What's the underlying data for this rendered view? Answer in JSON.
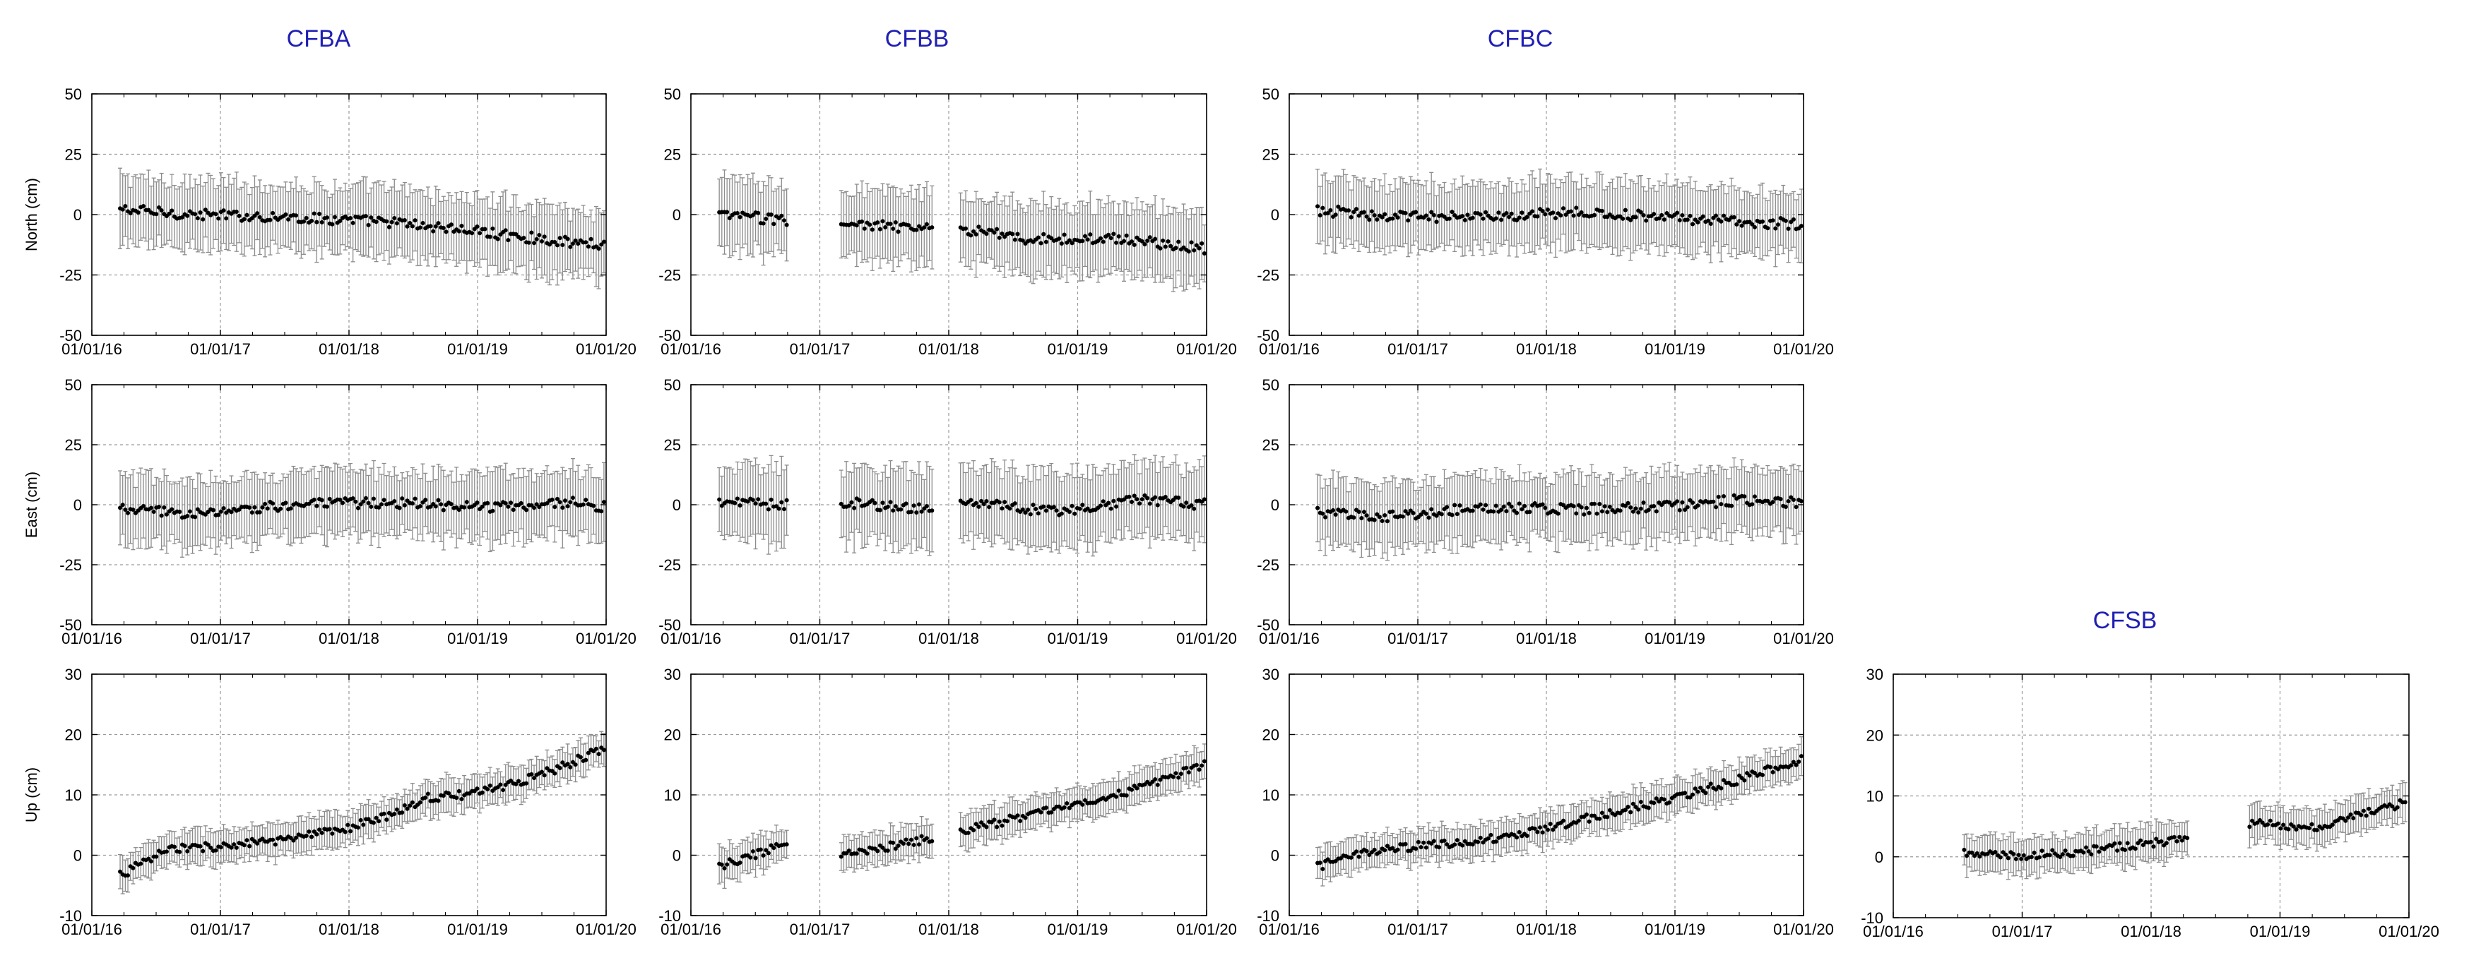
{
  "figure": {
    "series_color": "#000000",
    "errorbar_color": "#8c8c8c",
    "grid_color": "#9a9a9a",
    "title_color": "#1f1fb4"
  },
  "ylabels": {
    "north": "North (cm)",
    "east": "East (cm)",
    "up": "Up (cm)"
  },
  "titles": {
    "CFBA": "CFBA",
    "CFBB": "CFBB",
    "CFBC": "CFBC",
    "CFSB": "CFSB"
  },
  "chart_data": [
    {
      "id": "CFBA-north",
      "type": "scatter",
      "station": "CFBA",
      "component": "north",
      "ylabel": "North (cm)",
      "x_range": [
        "2016-01-01",
        "2020-01-01"
      ],
      "xticks": [
        "01/01/16",
        "01/01/17",
        "01/01/18",
        "01/01/19",
        "01/01/20"
      ],
      "ylim": [
        -50,
        50
      ],
      "yticks": [
        -50,
        -25,
        0,
        25,
        50
      ],
      "grid": true,
      "trend": [
        [
          2016.25,
          2
        ],
        [
          2016.8,
          0
        ],
        [
          2017.5,
          -1
        ],
        [
          2018.3,
          -3
        ],
        [
          2019.0,
          -7
        ],
        [
          2019.8,
          -12
        ],
        [
          2020.0,
          -12
        ]
      ],
      "errorbar_half_width_cm": 14,
      "gaps": []
    },
    {
      "id": "CFBA-east",
      "type": "scatter",
      "station": "CFBA",
      "component": "east",
      "ylabel": "East (cm)",
      "x_range": [
        "2016-01-01",
        "2020-01-01"
      ],
      "xticks": [
        "01/01/16",
        "01/01/17",
        "01/01/18",
        "01/01/19",
        "01/01/20"
      ],
      "ylim": [
        -50,
        50
      ],
      "yticks": [
        -50,
        -25,
        0,
        25,
        50
      ],
      "grid": true,
      "trend": [
        [
          2016.25,
          -2
        ],
        [
          2016.9,
          -4
        ],
        [
          2017.5,
          0
        ],
        [
          2018.3,
          1
        ],
        [
          2019.0,
          -1
        ],
        [
          2019.8,
          1
        ],
        [
          2020.0,
          -1
        ]
      ],
      "errorbar_half_width_cm": 14,
      "gaps": []
    },
    {
      "id": "CFBA-up",
      "type": "scatter",
      "station": "CFBA",
      "component": "up",
      "ylabel": "Up (cm)",
      "x_range": [
        "2016-01-01",
        "2020-01-01"
      ],
      "xticks": [
        "01/01/16",
        "01/01/17",
        "01/01/18",
        "01/01/19",
        "01/01/20"
      ],
      "ylim": [
        -10,
        30
      ],
      "yticks": [
        -10,
        0,
        10,
        20,
        30
      ],
      "grid": true,
      "trend": [
        [
          2016.25,
          -3
        ],
        [
          2016.6,
          1
        ],
        [
          2017.0,
          1.5
        ],
        [
          2017.5,
          2.5
        ],
        [
          2018.0,
          4.5
        ],
        [
          2018.3,
          6.5
        ],
        [
          2018.6,
          9.5
        ],
        [
          2018.9,
          10
        ],
        [
          2019.3,
          12
        ],
        [
          2019.7,
          15
        ],
        [
          2020.0,
          18
        ]
      ],
      "errorbar_half_width_cm": 2.8,
      "gaps": []
    },
    {
      "id": "CFBB-north",
      "type": "scatter",
      "station": "CFBB",
      "component": "north",
      "ylabel": "",
      "x_range": [
        "2016-01-01",
        "2020-01-01"
      ],
      "xticks": [
        "01/01/16",
        "01/01/17",
        "01/01/18",
        "01/01/19",
        "01/01/20"
      ],
      "ylim": [
        -50,
        50
      ],
      "yticks": [
        -50,
        -25,
        0,
        25,
        50
      ],
      "grid": true,
      "trend": [
        [
          2016.2,
          0
        ],
        [
          2016.7,
          -2
        ],
        [
          2017.2,
          -4
        ],
        [
          2017.9,
          -6
        ],
        [
          2018.1,
          -6
        ],
        [
          2018.6,
          -10
        ],
        [
          2019.3,
          -10
        ],
        [
          2020.0,
          -14
        ]
      ],
      "errorbar_half_width_cm": 15,
      "gaps": [
        [
          2016.75,
          2017.15
        ],
        [
          2017.88,
          2018.08
        ]
      ]
    },
    {
      "id": "CFBB-east",
      "type": "scatter",
      "station": "CFBB",
      "component": "east",
      "ylabel": "",
      "x_range": [
        "2016-01-01",
        "2020-01-01"
      ],
      "xticks": [
        "01/01/16",
        "01/01/17",
        "01/01/18",
        "01/01/19",
        "01/01/20"
      ],
      "ylim": [
        -50,
        50
      ],
      "yticks": [
        -50,
        -25,
        0,
        25,
        50
      ],
      "grid": true,
      "trend": [
        [
          2016.2,
          1
        ],
        [
          2016.7,
          0
        ],
        [
          2017.2,
          1
        ],
        [
          2017.9,
          -2
        ],
        [
          2018.1,
          1
        ],
        [
          2018.8,
          -3
        ],
        [
          2019.5,
          2
        ],
        [
          2020.0,
          0
        ]
      ],
      "errorbar_half_width_cm": 16,
      "gaps": [
        [
          2016.75,
          2017.15
        ],
        [
          2017.88,
          2018.08
        ]
      ]
    },
    {
      "id": "CFBB-up",
      "type": "scatter",
      "station": "CFBB",
      "component": "up",
      "ylabel": "",
      "x_range": [
        "2016-01-01",
        "2020-01-01"
      ],
      "xticks": [
        "01/01/16",
        "01/01/17",
        "01/01/18",
        "01/01/19",
        "01/01/20"
      ],
      "ylim": [
        -10,
        30
      ],
      "yticks": [
        -10,
        0,
        10,
        20,
        30
      ],
      "grid": true,
      "trend": [
        [
          2016.2,
          -2
        ],
        [
          2016.7,
          1.5
        ],
        [
          2017.2,
          0
        ],
        [
          2017.9,
          3
        ],
        [
          2018.1,
          4
        ],
        [
          2018.7,
          7
        ],
        [
          2019.3,
          10
        ],
        [
          2020.0,
          15
        ]
      ],
      "errorbar_half_width_cm": 2.8,
      "gaps": [
        [
          2016.75,
          2017.15
        ],
        [
          2017.88,
          2018.08
        ]
      ]
    },
    {
      "id": "CFBC-north",
      "type": "scatter",
      "station": "CFBC",
      "component": "north",
      "ylabel": "",
      "x_range": [
        "2016-01-01",
        "2020-01-01"
      ],
      "xticks": [
        "01/01/16",
        "01/01/17",
        "01/01/18",
        "01/01/19",
        "01/01/20"
      ],
      "ylim": [
        -50,
        50
      ],
      "yticks": [
        -50,
        -25,
        0,
        25,
        50
      ],
      "grid": true,
      "trend": [
        [
          2016.2,
          2
        ],
        [
          2016.8,
          -1
        ],
        [
          2017.5,
          -1
        ],
        [
          2018.2,
          1
        ],
        [
          2018.9,
          -1
        ],
        [
          2019.5,
          -3
        ],
        [
          2020.0,
          -4
        ]
      ],
      "errorbar_half_width_cm": 14,
      "gaps": []
    },
    {
      "id": "CFBC-east",
      "type": "scatter",
      "station": "CFBC",
      "component": "east",
      "ylabel": "",
      "x_range": [
        "2016-01-01",
        "2020-01-01"
      ],
      "xticks": [
        "01/01/16",
        "01/01/17",
        "01/01/18",
        "01/01/19",
        "01/01/20"
      ],
      "ylim": [
        -50,
        50
      ],
      "yticks": [
        -50,
        -25,
        0,
        25,
        50
      ],
      "grid": true,
      "trend": [
        [
          2016.2,
          -3
        ],
        [
          2016.8,
          -5
        ],
        [
          2017.5,
          -1
        ],
        [
          2018.2,
          -2
        ],
        [
          2018.9,
          -1
        ],
        [
          2019.5,
          2
        ],
        [
          2020.0,
          1
        ]
      ],
      "errorbar_half_width_cm": 14,
      "gaps": []
    },
    {
      "id": "CFBC-up",
      "type": "scatter",
      "station": "CFBC",
      "component": "up",
      "ylabel": "",
      "x_range": [
        "2016-01-01",
        "2020-01-01"
      ],
      "xticks": [
        "01/01/16",
        "01/01/17",
        "01/01/18",
        "01/01/19",
        "01/01/20"
      ],
      "ylim": [
        -10,
        30
      ],
      "yticks": [
        -10,
        0,
        10,
        20,
        30
      ],
      "grid": true,
      "trend": [
        [
          2016.2,
          -2
        ],
        [
          2016.6,
          0.5
        ],
        [
          2017.0,
          1.5
        ],
        [
          2017.5,
          2.5
        ],
        [
          2018.0,
          4.5
        ],
        [
          2018.5,
          7
        ],
        [
          2019.0,
          9.5
        ],
        [
          2019.5,
          12.5
        ],
        [
          2020.0,
          16
        ]
      ],
      "errorbar_half_width_cm": 2.8,
      "gaps": []
    },
    {
      "id": "CFSB-up",
      "type": "scatter",
      "station": "CFSB",
      "component": "up",
      "ylabel": "",
      "x_range": [
        "2016-01-01",
        "2020-01-01"
      ],
      "xticks": [
        "01/01/16",
        "01/01/17",
        "01/01/18",
        "01/01/19",
        "01/01/20"
      ],
      "ylim": [
        -10,
        30
      ],
      "yticks": [
        -10,
        0,
        10,
        20,
        30
      ],
      "grid": true,
      "trend": [
        [
          2016.55,
          0.5
        ],
        [
          2017.0,
          0
        ],
        [
          2017.5,
          1
        ],
        [
          2018.3,
          3
        ],
        [
          2018.8,
          5.5
        ],
        [
          2019.3,
          5
        ],
        [
          2019.7,
          7.5
        ],
        [
          2020.0,
          9
        ]
      ],
      "errorbar_half_width_cm": 3,
      "start": 2016.55,
      "gaps": [
        [
          2018.3,
          2018.75
        ]
      ]
    }
  ]
}
